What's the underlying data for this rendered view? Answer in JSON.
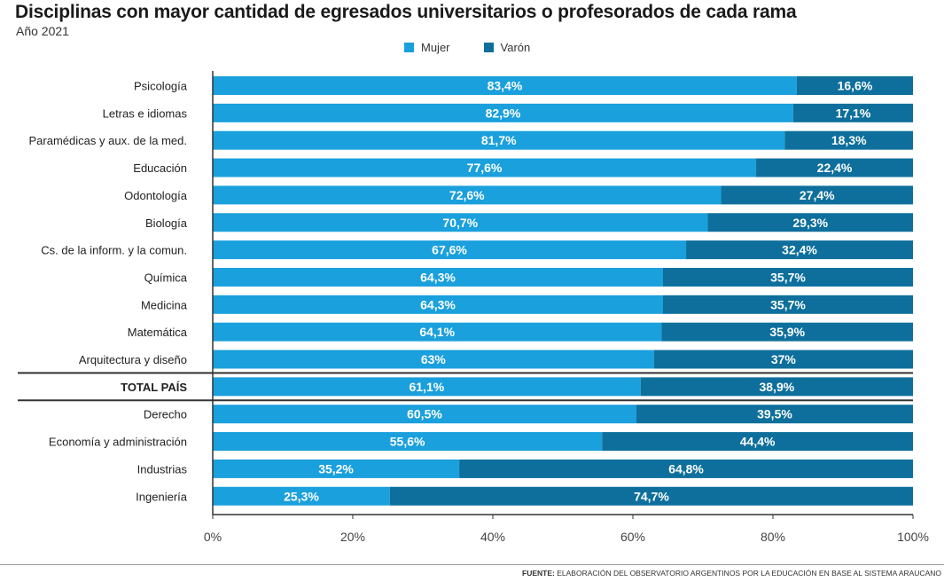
{
  "chart_data": {
    "type": "bar",
    "orientation": "horizontal",
    "stacked": true,
    "title": "Disciplinas con mayor cantidad de egresados universitarios o profesorados de cada rama",
    "subtitle": "Año 2021",
    "legend_position": "top-center",
    "grid": false,
    "xlim": [
      0,
      100
    ],
    "xticks": [
      "0%",
      "20%",
      "40%",
      "60%",
      "80%",
      "100%"
    ],
    "categories": [
      "Psicología",
      "Letras e idiomas",
      "Paramédicas y aux. de la med.",
      "Educación",
      "Odontología",
      "Biología",
      "Cs. de la inform. y la comun.",
      "Química",
      "Medicina",
      "Matemática",
      "Arquitectura y diseño",
      "TOTAL PAÍS",
      "Derecho",
      "Economía y administración",
      "Industrias",
      "Ingeniería"
    ],
    "highlight_category": "TOTAL PAÍS",
    "series": [
      {
        "name": "Mujer",
        "color": "#1aa0dc",
        "values": [
          83.4,
          82.9,
          81.7,
          77.6,
          72.6,
          70.7,
          67.6,
          64.3,
          64.3,
          64.1,
          63,
          61.1,
          60.5,
          55.6,
          35.2,
          25.3
        ],
        "labels": [
          "83,4%",
          "82,9%",
          "81,7%",
          "77,6%",
          "72,6%",
          "70,7%",
          "67,6%",
          "64,3%",
          "64,3%",
          "64,1%",
          "63%",
          "61,1%",
          "60,5%",
          "55,6%",
          "35,2%",
          "25,3%"
        ]
      },
      {
        "name": "Varón",
        "color": "#0e6f9c",
        "values": [
          16.6,
          17.1,
          18.3,
          22.4,
          27.4,
          29.3,
          32.4,
          35.7,
          35.7,
          35.9,
          37,
          38.9,
          39.5,
          44.4,
          64.8,
          74.7
        ],
        "labels": [
          "16,6%",
          "17,1%",
          "18,3%",
          "22,4%",
          "27,4%",
          "29,3%",
          "32,4%",
          "35,7%",
          "35,7%",
          "35,9%",
          "37%",
          "38,9%",
          "39,5%",
          "44,4%",
          "64,8%",
          "74,7%"
        ]
      }
    ]
  },
  "footer": {
    "source_label": "FUENTE:",
    "source_text": "ELABORACIÓN DEL OBSERVATORIO ARGENTINOS POR LA EDUCACIÓN EN BASE AL SISTEMA ARAUCANO"
  }
}
